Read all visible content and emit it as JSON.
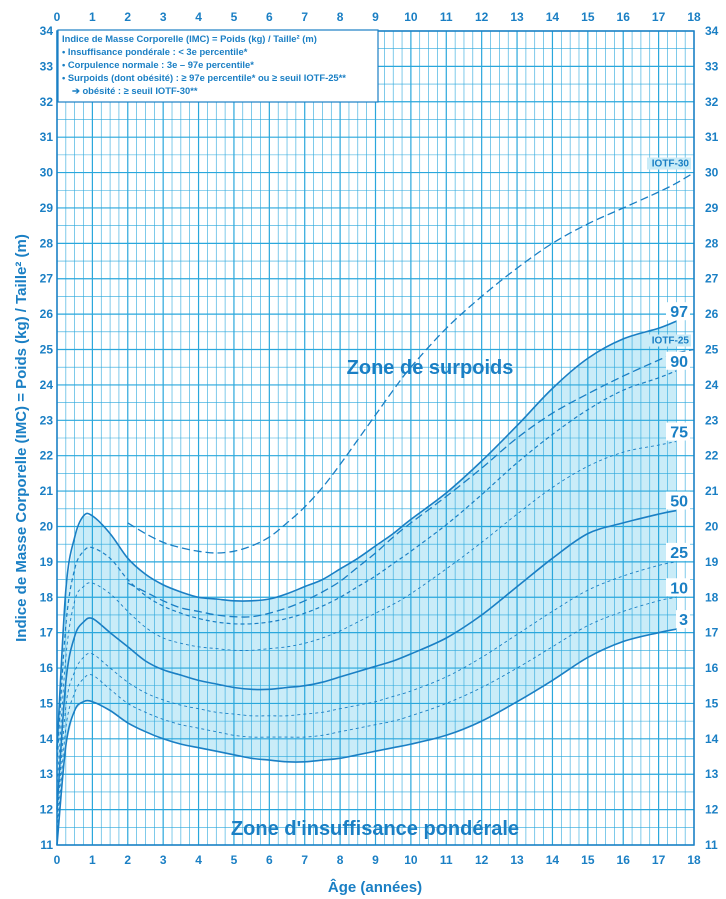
{
  "chart_data": {
    "type": "line",
    "xlabel": "Âge (années)",
    "ylabel": "Indice de Masse Corporelle (IMC) = Poids (kg) / Taille² (m)",
    "xlim": [
      0,
      18
    ],
    "ylim": [
      11,
      34
    ],
    "x_ticks": [
      "0",
      "1",
      "2",
      "3",
      "4",
      "5",
      "6",
      "7",
      "8",
      "9",
      "10",
      "11",
      "12",
      "13",
      "14",
      "15",
      "16",
      "17",
      "18"
    ],
    "y_ticks": [
      "11",
      "12",
      "13",
      "14",
      "15",
      "16",
      "17",
      "18",
      "19",
      "20",
      "21",
      "22",
      "23",
      "24",
      "25",
      "26",
      "27",
      "28",
      "29",
      "30",
      "31",
      "32",
      "33",
      "34"
    ],
    "legend_box": {
      "title": "Indice de Masse Corporelle (IMC) = Poids (kg) / Taille² (m)",
      "lines": [
        "• Insuffisance pondérale : < 3e percentile*",
        "• Corpulence normale : 3e – 97e percentile*",
        "• Surpoids (dont obésité) : ≥ 97e percentile* ou ≥ seuil IOTF-25**",
        "➔ obésité : ≥ seuil IOTF-30**"
      ]
    },
    "annotations": {
      "overweight_zone": "Zone de surpoids",
      "underweight_zone": "Zone d'insuffisance pondérale"
    },
    "colors": {
      "primary": "#1a7fc4",
      "grid": "#2aa7dc",
      "band": "#c9ecf8"
    },
    "series": [
      {
        "name": "97",
        "label": "97",
        "style": "solid",
        "x": [
          0,
          0.25,
          0.5,
          0.75,
          1,
          1.5,
          2,
          2.5,
          3,
          3.5,
          4,
          4.5,
          5,
          5.5,
          6,
          6.5,
          7,
          7.5,
          8,
          8.5,
          9,
          9.5,
          10,
          11,
          12,
          13,
          14,
          15,
          16,
          17,
          17.5
        ],
        "y": [
          13.7,
          18.2,
          19.7,
          20.3,
          20.3,
          19.8,
          19.1,
          18.65,
          18.35,
          18.15,
          18.0,
          17.95,
          17.9,
          17.9,
          17.95,
          18.1,
          18.3,
          18.5,
          18.8,
          19.1,
          19.45,
          19.8,
          20.2,
          20.95,
          21.85,
          22.85,
          23.9,
          24.75,
          25.3,
          25.6,
          25.8
        ]
      },
      {
        "name": "90",
        "label": "90",
        "style": "dashed",
        "x": [
          0,
          0.25,
          0.5,
          0.75,
          1,
          1.5,
          2,
          2.5,
          3,
          3.5,
          4,
          4.5,
          5,
          5.5,
          6,
          6.5,
          7,
          7.5,
          8,
          8.5,
          9,
          9.5,
          10,
          11,
          12,
          13,
          14,
          15,
          16,
          17,
          17.5
        ],
        "y": [
          13.3,
          17.2,
          18.8,
          19.3,
          19.4,
          19.1,
          18.5,
          18.05,
          17.75,
          17.55,
          17.4,
          17.3,
          17.25,
          17.25,
          17.3,
          17.4,
          17.55,
          17.75,
          18.0,
          18.3,
          18.6,
          18.95,
          19.3,
          20.05,
          20.9,
          21.8,
          22.6,
          23.3,
          23.85,
          24.2,
          24.4
        ]
      },
      {
        "name": "75",
        "label": "75",
        "style": "dashed-thin",
        "x": [
          0,
          0.25,
          0.5,
          0.75,
          1,
          1.5,
          2,
          2.5,
          3,
          3.5,
          4,
          4.5,
          5,
          5.5,
          6,
          6.5,
          7,
          7.5,
          8,
          8.5,
          9,
          9.5,
          10,
          11,
          12,
          13,
          14,
          15,
          16,
          17,
          17.5
        ],
        "y": [
          12.6,
          16.3,
          17.9,
          18.3,
          18.4,
          18.1,
          17.6,
          17.15,
          16.85,
          16.7,
          16.6,
          16.55,
          16.5,
          16.5,
          16.55,
          16.6,
          16.7,
          16.85,
          17.05,
          17.3,
          17.55,
          17.8,
          18.1,
          18.8,
          19.55,
          20.35,
          21.1,
          21.7,
          22.1,
          22.3,
          22.4
        ]
      },
      {
        "name": "50",
        "label": "50",
        "style": "solid",
        "x": [
          0,
          0.25,
          0.5,
          0.75,
          1,
          1.5,
          2,
          2.5,
          3,
          3.5,
          4,
          4.5,
          5,
          5.5,
          6,
          6.5,
          7,
          7.5,
          8,
          8.5,
          9,
          9.5,
          10,
          11,
          12,
          13,
          14,
          15,
          16,
          17,
          17.5
        ],
        "y": [
          12.0,
          15.6,
          16.9,
          17.3,
          17.4,
          17.0,
          16.6,
          16.2,
          15.95,
          15.8,
          15.65,
          15.55,
          15.45,
          15.4,
          15.4,
          15.45,
          15.5,
          15.6,
          15.75,
          15.9,
          16.05,
          16.2,
          16.4,
          16.85,
          17.5,
          18.3,
          19.1,
          19.8,
          20.1,
          20.35,
          20.45
        ]
      },
      {
        "name": "25",
        "label": "25",
        "style": "dashed-thin",
        "x": [
          0,
          0.25,
          0.5,
          0.75,
          1,
          1.5,
          2,
          2.5,
          3,
          3.5,
          4,
          4.5,
          5,
          5.5,
          6,
          6.5,
          7,
          7.5,
          8,
          8.5,
          9,
          9.5,
          10,
          11,
          12,
          13,
          14,
          15,
          16,
          17,
          17.5
        ],
        "y": [
          11.6,
          14.9,
          15.9,
          16.3,
          16.4,
          16.0,
          15.6,
          15.3,
          15.1,
          14.95,
          14.85,
          14.75,
          14.7,
          14.65,
          14.65,
          14.65,
          14.7,
          14.75,
          14.85,
          14.95,
          15.05,
          15.2,
          15.35,
          15.75,
          16.3,
          16.95,
          17.6,
          18.2,
          18.6,
          18.9,
          19.0
        ]
      },
      {
        "name": "10",
        "label": "10",
        "style": "dashed-thin",
        "x": [
          0,
          0.25,
          0.5,
          0.75,
          1,
          1.5,
          2,
          2.5,
          3,
          3.5,
          4,
          4.5,
          5,
          5.5,
          6,
          6.5,
          7,
          7.5,
          8,
          8.5,
          9,
          9.5,
          10,
          11,
          12,
          13,
          14,
          15,
          16,
          17,
          17.5
        ],
        "y": [
          11.3,
          14.3,
          15.3,
          15.7,
          15.8,
          15.4,
          15.0,
          14.75,
          14.55,
          14.4,
          14.3,
          14.2,
          14.1,
          14.05,
          14.05,
          14.05,
          14.05,
          14.1,
          14.2,
          14.3,
          14.4,
          14.5,
          14.65,
          15.0,
          15.45,
          16.0,
          16.6,
          17.2,
          17.6,
          17.9,
          18.0
        ]
      },
      {
        "name": "3",
        "label": "3",
        "style": "solid",
        "x": [
          0,
          0.25,
          0.5,
          0.75,
          1,
          1.5,
          2,
          2.5,
          3,
          3.5,
          4,
          4.5,
          5,
          5.5,
          6,
          6.5,
          7,
          7.5,
          8,
          8.5,
          9,
          9.5,
          10,
          11,
          12,
          13,
          14,
          15,
          16,
          17,
          17.5
        ],
        "y": [
          11.0,
          13.8,
          14.8,
          15.05,
          15.05,
          14.8,
          14.45,
          14.2,
          14.0,
          13.85,
          13.75,
          13.65,
          13.55,
          13.45,
          13.4,
          13.35,
          13.35,
          13.4,
          13.45,
          13.55,
          13.65,
          13.75,
          13.85,
          14.1,
          14.5,
          15.05,
          15.65,
          16.3,
          16.75,
          17.0,
          17.1
        ]
      },
      {
        "name": "IOTF-30",
        "label": "IOTF-30",
        "style": "dashed-long",
        "x": [
          2,
          2.5,
          3,
          3.5,
          4,
          4.5,
          5,
          5.5,
          6,
          6.5,
          7,
          7.5,
          8,
          8.5,
          9,
          9.5,
          10,
          11,
          12,
          13,
          14,
          15,
          16,
          17,
          17.5,
          18
        ],
        "y": [
          20.1,
          19.8,
          19.55,
          19.4,
          19.3,
          19.25,
          19.3,
          19.45,
          19.7,
          20.1,
          20.55,
          21.1,
          21.75,
          22.45,
          23.15,
          23.85,
          24.5,
          25.6,
          26.5,
          27.3,
          28.0,
          28.55,
          29.0,
          29.45,
          29.7,
          30.0
        ]
      },
      {
        "name": "IOTF-25",
        "label": "IOTF-25",
        "style": "dashed-long",
        "x": [
          2,
          2.5,
          3,
          3.5,
          4,
          4.5,
          5,
          5.5,
          6,
          6.5,
          7,
          7.5,
          8,
          8.5,
          9,
          9.5,
          10,
          11,
          12,
          13,
          14,
          15,
          16,
          17,
          17.5,
          18
        ],
        "y": [
          18.4,
          18.15,
          17.9,
          17.7,
          17.6,
          17.5,
          17.45,
          17.45,
          17.55,
          17.7,
          17.9,
          18.15,
          18.45,
          18.85,
          19.25,
          19.7,
          20.1,
          20.85,
          21.65,
          22.5,
          23.2,
          23.75,
          24.25,
          24.7,
          24.9,
          25.0
        ]
      }
    ]
  }
}
